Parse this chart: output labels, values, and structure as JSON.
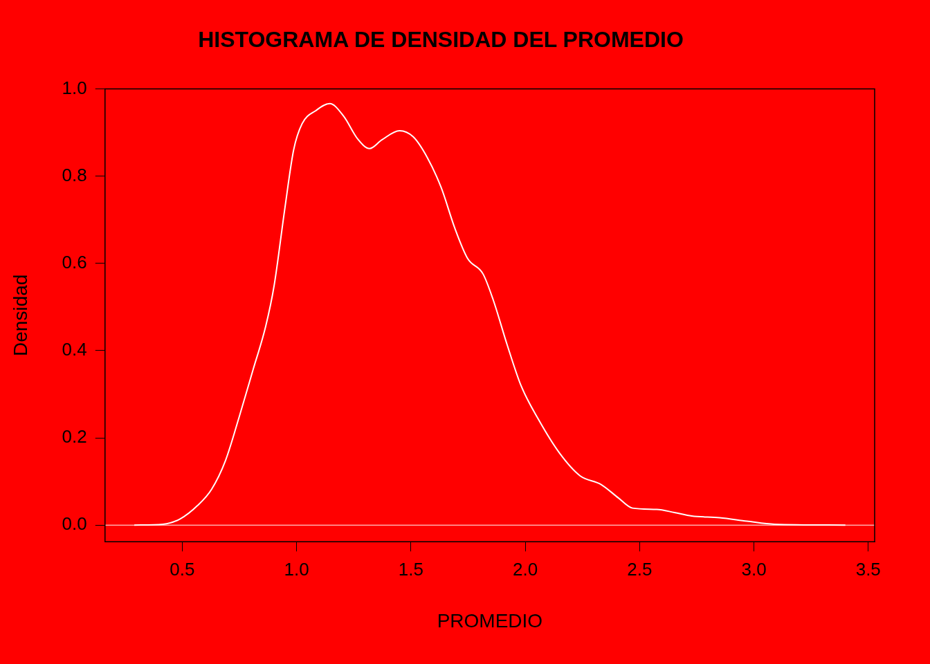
{
  "chart_data": {
    "type": "line",
    "title": "HISTOGRAMA DE DENSIDAD DEL PROMEDIO",
    "xlabel": "PROMEDIO",
    "ylabel": "Densidad",
    "x": [
      0.29,
      0.415,
      0.49,
      0.567,
      0.628,
      0.689,
      0.75,
      0.81,
      0.865,
      0.902,
      0.947,
      0.987,
      1.024,
      1.084,
      1.145,
      1.206,
      1.267,
      1.319,
      1.373,
      1.45,
      1.51,
      1.571,
      1.632,
      1.693,
      1.748,
      1.815,
      1.86,
      1.921,
      1.982,
      2.058,
      2.15,
      2.24,
      2.332,
      2.408,
      2.469,
      2.575,
      2.652,
      2.728,
      2.85,
      2.97,
      3.09,
      3.4
    ],
    "series": [
      {
        "color": "#ffffff",
        "values": [
          0,
          0.002,
          0.014,
          0.045,
          0.082,
          0.148,
          0.25,
          0.357,
          0.456,
          0.55,
          0.72,
          0.86,
          0.92,
          0.95,
          0.966,
          0.937,
          0.885,
          0.863,
          0.883,
          0.904,
          0.89,
          0.843,
          0.774,
          0.679,
          0.611,
          0.576,
          0.516,
          0.413,
          0.319,
          0.242,
          0.165,
          0.113,
          0.093,
          0.062,
          0.039,
          0.036,
          0.029,
          0.021,
          0.017,
          0.009,
          0.002,
          0
        ]
      }
    ],
    "xlim": [
      0.162,
      3.528
    ],
    "ylim": [
      -0.038,
      1.0
    ],
    "xticks": [
      {
        "value": 0.5,
        "label": "0.5"
      },
      {
        "value": 1,
        "label": "1.0"
      },
      {
        "value": 1.5,
        "label": "1.5"
      },
      {
        "value": 2,
        "label": "2.0"
      },
      {
        "value": 2.5,
        "label": "2.5"
      },
      {
        "value": 3,
        "label": "3.0"
      },
      {
        "value": 3.5,
        "label": "3.5"
      }
    ],
    "yticks": [
      {
        "value": 0,
        "label": "0.0"
      },
      {
        "value": 0.2,
        "label": "0.2"
      },
      {
        "value": 0.4,
        "label": "0.4"
      },
      {
        "value": 0.6,
        "label": "0.6"
      },
      {
        "value": 0.8,
        "label": "0.8"
      },
      {
        "value": 1,
        "label": "1.0"
      }
    ],
    "ref_lines": [
      {
        "axis": "y",
        "value": 0,
        "color": "#ffffff"
      }
    ],
    "grid": false,
    "legend": false,
    "marker": "none",
    "line_style": "solid"
  }
}
